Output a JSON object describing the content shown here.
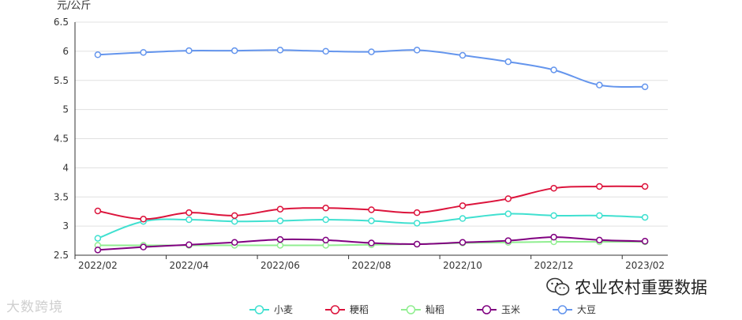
{
  "chart_data": {
    "type": "line",
    "y_unit": "元/公斤",
    "ylim": [
      2.5,
      6.5
    ],
    "y_ticks": [
      "2.5",
      "3",
      "3.5",
      "4",
      "4.5",
      "5",
      "5.5",
      "6",
      "6.5"
    ],
    "x": [
      "2022/02",
      "2022/03",
      "2022/04",
      "2022/05",
      "2022/06",
      "2022/07",
      "2022/08",
      "2022/09",
      "2022/10",
      "2022/11",
      "2022/12",
      "2023/01",
      "2023/02"
    ],
    "x_tick_labels": [
      "2022/02",
      "2022/04",
      "2022/06",
      "2022/08",
      "2022/10",
      "2022/12",
      "2023/02"
    ],
    "grid": true,
    "legend_position": "bottom",
    "series": [
      {
        "name": "小麦",
        "color": "#40e0d0",
        "values": [
          2.79,
          3.08,
          3.11,
          3.08,
          3.09,
          3.11,
          3.09,
          3.05,
          3.13,
          3.21,
          3.18,
          3.18,
          3.15
        ]
      },
      {
        "name": "粳稻",
        "color": "#dc143c",
        "values": [
          3.26,
          3.12,
          3.23,
          3.18,
          3.29,
          3.31,
          3.28,
          3.23,
          3.35,
          3.47,
          3.65,
          3.68,
          3.68
        ]
      },
      {
        "name": "籼稻",
        "color": "#90ee90",
        "values": [
          2.67,
          2.67,
          2.67,
          2.67,
          2.67,
          2.67,
          2.68,
          2.69,
          2.71,
          2.72,
          2.73,
          2.73,
          2.73
        ]
      },
      {
        "name": "玉米",
        "color": "#800080",
        "values": [
          2.59,
          2.64,
          2.68,
          2.72,
          2.77,
          2.76,
          2.71,
          2.69,
          2.72,
          2.75,
          2.81,
          2.76,
          2.74
        ]
      },
      {
        "name": "大豆",
        "color": "#6495ed",
        "values": [
          5.94,
          5.98,
          6.01,
          6.01,
          6.02,
          6.0,
          5.99,
          6.02,
          5.93,
          5.82,
          5.68,
          5.42,
          5.39
        ]
      }
    ]
  },
  "watermarks": {
    "left": "大数跨境",
    "right": "农业农村重要数据"
  }
}
